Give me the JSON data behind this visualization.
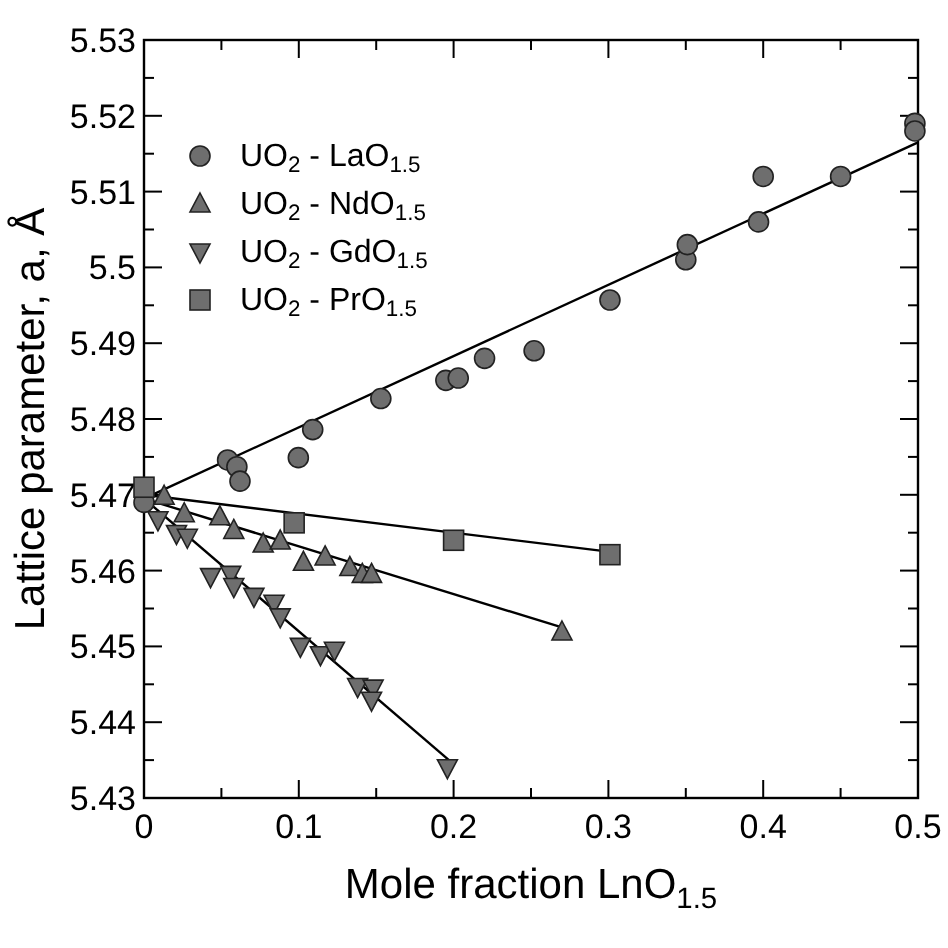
{
  "chart_data": {
    "type": "scatter",
    "xlabel": "Mole fraction LnO$_{1.5}$",
    "ylabel": "Lattice parameter, a, Å",
    "xlim": [
      0,
      0.5
    ],
    "ylim": [
      5.43,
      5.53
    ],
    "xticks": [
      0,
      {
        "value": 0.05,
        "label": null
      },
      0.1,
      {
        "value": 0.15,
        "label": null
      },
      0.2,
      {
        "value": 0.25,
        "label": null
      },
      0.3,
      {
        "value": 0.35,
        "label": null
      },
      0.4,
      {
        "value": 0.45,
        "label": null
      },
      0.5
    ],
    "yticks": [
      5.43,
      {
        "value": 5.435,
        "label": null
      },
      5.44,
      {
        "value": 5.445,
        "label": null
      },
      5.45,
      {
        "value": 5.455,
        "label": null
      },
      5.46,
      {
        "value": 5.465,
        "label": null
      },
      5.47,
      {
        "value": 5.475,
        "label": null
      },
      5.48,
      {
        "value": 5.485,
        "label": null
      },
      5.49,
      {
        "value": 5.495,
        "label": null
      },
      5.5,
      {
        "value": 5.505,
        "label": null
      },
      5.51,
      {
        "value": 5.515,
        "label": null
      },
      5.52,
      {
        "value": 5.525,
        "label": null
      },
      5.53
    ],
    "grid": false,
    "legend": "top left",
    "series": [
      {
        "type": "line",
        "color": "#000000",
        "marker": "none",
        "x": [
          0,
          0.5
        ],
        "values": [
          5.4695,
          5.5165
        ]
      },
      {
        "type": "line",
        "color": "#000000",
        "marker": "none",
        "x": [
          0,
          0.27
        ],
        "values": [
          5.4695,
          5.4525
        ]
      },
      {
        "type": "line",
        "color": "#000000",
        "marker": "none",
        "x": [
          0,
          0.197
        ],
        "values": [
          5.4695,
          5.435
        ]
      },
      {
        "type": "line",
        "color": "#000000",
        "marker": "none",
        "x": [
          0,
          0.3
        ],
        "values": [
          5.47,
          5.4625
        ]
      },
      {
        "name": "UO$_{2}$ - LaO$_{1.5}$",
        "color": "#6e6e6e",
        "marker": "circle",
        "x": [
          0,
          0.054,
          0.06,
          0.062,
          0.0997,
          0.109,
          0.153,
          0.195,
          0.203,
          0.22,
          0.252,
          0.301,
          0.35,
          0.351,
          0.397,
          0.4,
          0.45,
          0.498,
          0.498
        ],
        "values": [
          5.469,
          5.4746,
          5.4737,
          5.4718,
          5.4749,
          5.4786,
          5.4827,
          5.4851,
          5.4854,
          5.488,
          5.489,
          5.4957,
          5.501,
          5.503,
          5.506,
          5.512,
          5.512,
          5.519,
          5.518
        ]
      },
      {
        "name": "UO$_{2}$ - NdO$_{1.5}$",
        "color": "#6e6e6e",
        "marker": "triangle",
        "x": [
          0.013,
          0.026,
          0.049,
          0.058,
          0.077,
          0.088,
          0.103,
          0.117,
          0.133,
          0.141,
          0.147,
          0.27
        ],
        "values": [
          5.4698,
          5.4675,
          5.4671,
          5.4653,
          5.4635,
          5.4639,
          5.4611,
          5.4618,
          5.4604,
          5.4595,
          5.4595,
          5.4519
        ]
      },
      {
        "name": "UO$_{2}$ - GdO$_{1.5}$",
        "color": "#6e6e6e",
        "marker": "triangle-down",
        "x": [
          0.009,
          0.021,
          0.028,
          0.043,
          0.056,
          0.058,
          0.071,
          0.084,
          0.088,
          0.101,
          0.114,
          0.123,
          0.138,
          0.148,
          0.147,
          0.196
        ],
        "values": [
          5.4667,
          5.4649,
          5.4644,
          5.4592,
          5.4595,
          5.4579,
          5.4566,
          5.4557,
          5.4539,
          5.45,
          5.4489,
          5.4495,
          5.4447,
          5.4445,
          5.4429,
          5.434
        ]
      },
      {
        "name": "UO$_{2}$ - PrO$_{1.5}$",
        "color": "#6e6e6e",
        "marker": "square",
        "x": [
          0,
          0.097,
          0.2,
          0.301
        ],
        "values": [
          5.471,
          5.4663,
          5.464,
          5.4621
        ]
      }
    ]
  }
}
